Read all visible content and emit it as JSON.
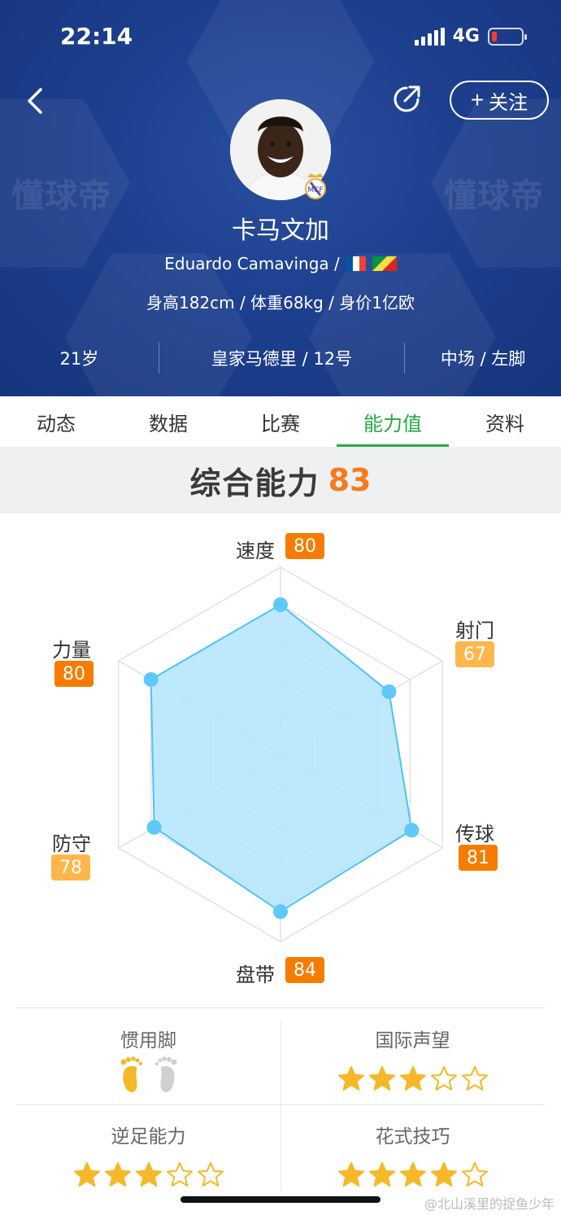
{
  "status_bar": {
    "time": "22:14",
    "network": "4G"
  },
  "header": {
    "watermark": "懂球帝",
    "follow_label": "关注",
    "player": {
      "name_cn": "卡马文加",
      "name_en": "Eduardo Camavinga /",
      "flags": [
        "france-flag",
        "congo-flag"
      ],
      "stats_line": "身高182cm / 体重68kg / 身价1亿欧"
    },
    "info": {
      "age": "21岁",
      "club": "皇家马德里 / 12号",
      "position": "中场 / 左脚"
    }
  },
  "tabs": [
    {
      "label": "动态"
    },
    {
      "label": "数据"
    },
    {
      "label": "比赛"
    },
    {
      "label": "能力值",
      "active": true
    },
    {
      "label": "资料"
    }
  ],
  "overall": {
    "label": "综合能力",
    "value": "83"
  },
  "chart_data": {
    "type": "radar",
    "axes": [
      "速度",
      "射门",
      "传球",
      "盘带",
      "防守",
      "力量"
    ],
    "values": [
      80,
      67,
      81,
      84,
      78,
      80
    ],
    "badge_colors": [
      "#f57c00",
      "#ffb74d",
      "#f57c00",
      "#f57c00",
      "#ffb74d",
      "#f57c00"
    ],
    "fill_color": "#b3e5fc",
    "stroke_color": "#4fc3f7",
    "point_color": "#5ec8fb"
  },
  "details": {
    "preferred_foot": {
      "label": "惯用脚",
      "foot": "left"
    },
    "reputation": {
      "label": "国际声望",
      "stars": 3,
      "max": 5
    },
    "weak_foot": {
      "label": "逆足能力",
      "stars": 3,
      "max": 5
    },
    "skill_moves": {
      "label": "花式技巧",
      "stars": 4,
      "max": 5
    }
  },
  "credit": "@北山溪里的捉鱼少年"
}
